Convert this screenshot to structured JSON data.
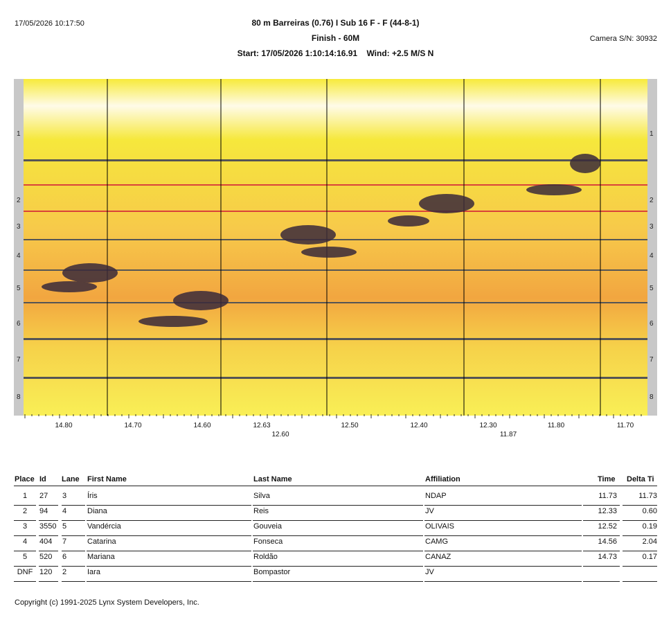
{
  "header": {
    "timestamp": "17/05/2026 10:17:50",
    "event_title": "80 m Barreiras (0.76) I Sub 16 F - F (44-8-1)",
    "finish_line": "Finish - 60M",
    "start_info": "Start: 17/05/2026 1:10:14:16.91    Wind: +2.5 M/S N",
    "camera": "Camera S/N: 30932"
  },
  "photo": {
    "lanes": [
      "1",
      "2",
      "3",
      "4",
      "5",
      "6",
      "7",
      "8"
    ],
    "colors": {
      "yellow": "#f7ea3a",
      "orange": "#f2a640",
      "dark_line": "#555555",
      "red_line": "#d9433a"
    }
  },
  "time_scale": {
    "top_labels": [
      "14.80",
      "14.70",
      "14.60",
      "12.63",
      "12.50",
      "12.40",
      "12.30",
      "11.80",
      "11.70"
    ],
    "bottom_labels": [
      "12.60",
      "11.87"
    ]
  },
  "results": {
    "columns": [
      "Place",
      "Id",
      "Lane",
      "First Name",
      "Last Name",
      "Affiliation",
      "Time",
      "Delta Ti"
    ],
    "rows": [
      {
        "place": "1",
        "id": "27",
        "lane": "3",
        "first": "Íris",
        "last": "Silva",
        "affiliation": "NDAP",
        "time": "11.73",
        "delta": "11.73"
      },
      {
        "place": "2",
        "id": "94",
        "lane": "4",
        "first": "Diana",
        "last": "Reis",
        "affiliation": "JV",
        "time": "12.33",
        "delta": "0.60"
      },
      {
        "place": "3",
        "id": "3550",
        "lane": "5",
        "first": "Vandércia",
        "last": "Gouveia",
        "affiliation": "OLIVAIS",
        "time": "12.52",
        "delta": "0.19"
      },
      {
        "place": "4",
        "id": "404",
        "lane": "7",
        "first": "Catarina",
        "last": "Fonseca",
        "affiliation": "CAMG",
        "time": "14.56",
        "delta": "2.04"
      },
      {
        "place": "5",
        "id": "520",
        "lane": "6",
        "first": "Mariana",
        "last": "Roldão",
        "affiliation": "CANAZ",
        "time": "14.73",
        "delta": "0.17"
      },
      {
        "place": "DNF",
        "id": "120",
        "lane": "2",
        "first": "Iara",
        "last": "Bompastor",
        "affiliation": "JV",
        "time": "",
        "delta": ""
      }
    ]
  },
  "footer": {
    "copyright": "Copyright (c) 1991-2025 Lynx System Developers, Inc."
  }
}
